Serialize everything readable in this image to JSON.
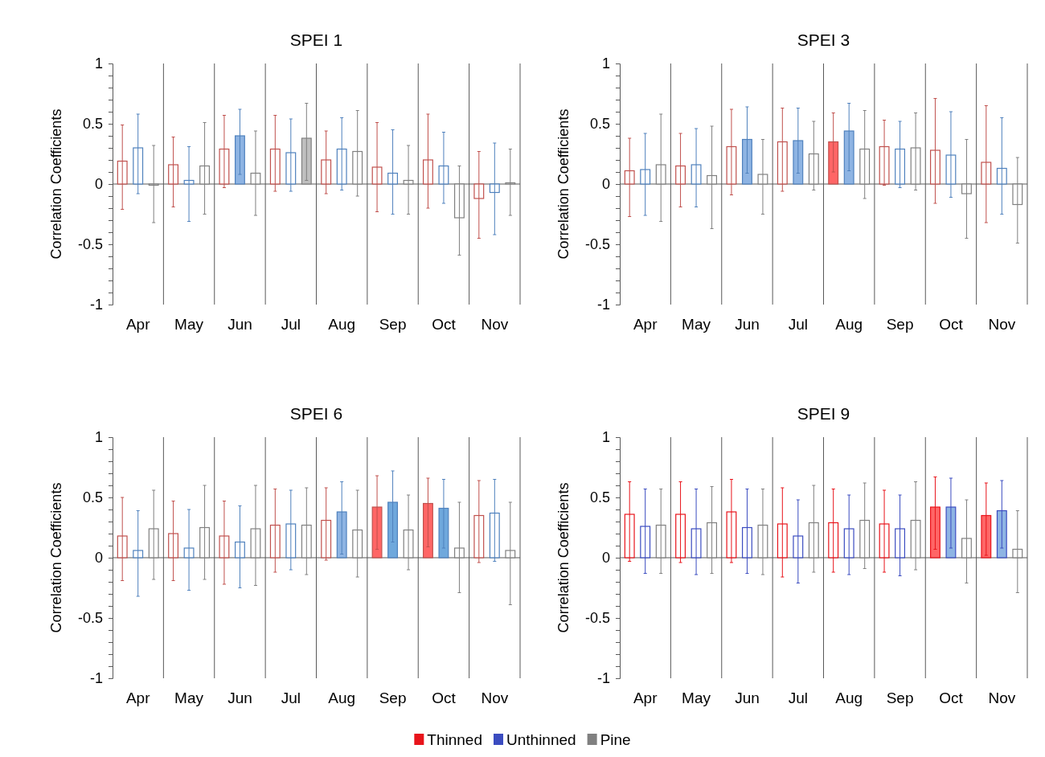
{
  "chart_data": [
    {
      "type": "bar",
      "ref_lines": [
        {
          "axis": "y",
          "value": 0,
          "color": "#595959"
        }
      ],
      "title": "SPEI 1",
      "ylabel": "Correlation Coefficients",
      "categories": [
        "Apr",
        "May",
        "Jun",
        "Jul",
        "Aug",
        "Sep",
        "Oct",
        "Nov"
      ],
      "ylim": [
        -1,
        1
      ],
      "yticks": [
        -1,
        {
          "value": -0.9,
          "label": null
        },
        {
          "value": -0.8,
          "label": null
        },
        {
          "value": -0.7,
          "label": null
        },
        {
          "value": -0.6,
          "label": null
        },
        -0.5,
        {
          "value": -0.4,
          "label": null
        },
        {
          "value": -0.3,
          "label": null
        },
        {
          "value": -0.2,
          "label": null
        },
        {
          "value": -0.1,
          "label": null
        },
        0,
        {
          "value": 0.1,
          "label": null
        },
        {
          "value": 0.2,
          "label": null
        },
        {
          "value": 0.3,
          "label": null
        },
        {
          "value": 0.4,
          "label": null
        },
        0.5,
        {
          "value": 0.6,
          "label": null
        },
        {
          "value": 0.7,
          "label": null
        },
        {
          "value": 0.8,
          "label": null
        },
        {
          "value": 0.9,
          "label": null
        },
        1
      ],
      "grid": "x",
      "series": [
        {
          "color": "#c0504d",
          "values": [
            0.19,
            0.16,
            0.29,
            0.29,
            0.2,
            0.14,
            0.2,
            -0.12
          ],
          "colors": [
            "#ffffff",
            "#ffffff",
            "#ffffff",
            "#ffffff",
            "#ffffff",
            "#ffffff",
            "#ffffff",
            "#ffffff"
          ],
          "errors": [
            [
              -0.21,
              0.49
            ],
            [
              -0.19,
              0.39
            ],
            [
              -0.03,
              0.57
            ],
            [
              -0.06,
              0.57
            ],
            [
              -0.08,
              0.44
            ],
            [
              -0.23,
              0.51
            ],
            [
              -0.2,
              0.58
            ],
            [
              -0.45,
              0.27
            ]
          ]
        },
        {
          "color": "#4f81bd",
          "values": [
            0.3,
            0.03,
            0.4,
            0.26,
            0.29,
            0.09,
            0.15,
            -0.07
          ],
          "colors": [
            "#ffffff",
            "#ffffff",
            "#8eb4e3",
            "#ffffff",
            "#ffffff",
            "#ffffff",
            "#ffffff",
            "#ffffff"
          ],
          "errors": [
            [
              -0.08,
              0.58
            ],
            [
              -0.31,
              0.31
            ],
            [
              0.08,
              0.62
            ],
            [
              -0.06,
              0.54
            ],
            [
              -0.05,
              0.55
            ],
            [
              -0.25,
              0.45
            ],
            [
              -0.16,
              0.43
            ],
            [
              -0.42,
              0.34
            ]
          ]
        },
        {
          "color": "#808080",
          "values": [
            -0.01,
            0.15,
            0.09,
            0.38,
            0.27,
            0.03,
            -0.28,
            0.01
          ],
          "colors": [
            "#ffffff",
            "#ffffff",
            "#ffffff",
            "#bfbfbf",
            "#ffffff",
            "#ffffff",
            "#ffffff",
            "#ffffff"
          ],
          "errors": [
            [
              -0.32,
              0.32
            ],
            [
              -0.25,
              0.51
            ],
            [
              -0.26,
              0.44
            ],
            [
              0.03,
              0.67
            ],
            [
              -0.1,
              0.61
            ],
            [
              -0.25,
              0.32
            ],
            [
              -0.59,
              0.15
            ],
            [
              -0.26,
              0.29
            ]
          ]
        }
      ]
    },
    {
      "type": "bar",
      "ref_lines": [
        {
          "axis": "y",
          "value": 0,
          "color": "#595959"
        }
      ],
      "title": "SPEI 3",
      "ylabel": "Correlation Coefficients",
      "categories": [
        "Apr",
        "May",
        "Jun",
        "Jul",
        "Aug",
        "Sep",
        "Oct",
        "Nov"
      ],
      "ylim": [
        -1,
        1
      ],
      "yticks": [
        -1,
        {
          "value": -0.9,
          "label": null
        },
        {
          "value": -0.8,
          "label": null
        },
        {
          "value": -0.7,
          "label": null
        },
        {
          "value": -0.6,
          "label": null
        },
        -0.5,
        {
          "value": -0.4,
          "label": null
        },
        {
          "value": -0.3,
          "label": null
        },
        {
          "value": -0.2,
          "label": null
        },
        {
          "value": -0.1,
          "label": null
        },
        0,
        {
          "value": 0.1,
          "label": null
        },
        {
          "value": 0.2,
          "label": null
        },
        {
          "value": 0.3,
          "label": null
        },
        {
          "value": 0.4,
          "label": null
        },
        0.5,
        {
          "value": 0.6,
          "label": null
        },
        {
          "value": 0.7,
          "label": null
        },
        {
          "value": 0.8,
          "label": null
        },
        {
          "value": 0.9,
          "label": null
        },
        1
      ],
      "grid": "x",
      "series": [
        {
          "color": "#c0504d",
          "values": [
            0.11,
            0.15,
            0.31,
            0.35,
            0.35,
            0.31,
            0.28,
            0.18
          ],
          "colors": [
            "#ffffff",
            "#ffffff",
            "#ffffff",
            "#ffffff",
            "#ff6666",
            "#ffffff",
            "#ffffff",
            "#ffffff"
          ],
          "errors": [
            [
              -0.27,
              0.38
            ],
            [
              -0.19,
              0.42
            ],
            [
              -0.09,
              0.62
            ],
            [
              -0.06,
              0.63
            ],
            [
              0.1,
              0.59
            ],
            [
              -0.01,
              0.53
            ],
            [
              -0.16,
              0.71
            ],
            [
              -0.32,
              0.65
            ]
          ]
        },
        {
          "color": "#4f81bd",
          "values": [
            0.12,
            0.16,
            0.37,
            0.36,
            0.44,
            0.29,
            0.24,
            0.13
          ],
          "colors": [
            "#ffffff",
            "#ffffff",
            "#8eb4e3",
            "#8eb4e3",
            "#8eb4e3",
            "#ffffff",
            "#ffffff",
            "#ffffff"
          ],
          "errors": [
            [
              -0.26,
              0.42
            ],
            [
              -0.19,
              0.46
            ],
            [
              0.09,
              0.64
            ],
            [
              0.09,
              0.63
            ],
            [
              0.11,
              0.67
            ],
            [
              -0.03,
              0.52
            ],
            [
              -0.11,
              0.6
            ],
            [
              -0.25,
              0.55
            ]
          ]
        },
        {
          "color": "#808080",
          "values": [
            0.16,
            0.07,
            0.08,
            0.25,
            0.29,
            0.3,
            -0.08,
            -0.17
          ],
          "colors": [
            "#ffffff",
            "#ffffff",
            "#ffffff",
            "#ffffff",
            "#ffffff",
            "#ffffff",
            "#ffffff",
            "#ffffff"
          ],
          "errors": [
            [
              -0.31,
              0.58
            ],
            [
              -0.37,
              0.48
            ],
            [
              -0.25,
              0.37
            ],
            [
              -0.05,
              0.52
            ],
            [
              -0.12,
              0.61
            ],
            [
              -0.05,
              0.59
            ],
            [
              -0.45,
              0.37
            ],
            [
              -0.49,
              0.22
            ]
          ]
        }
      ]
    },
    {
      "type": "bar",
      "ref_lines": [
        {
          "axis": "y",
          "value": 0,
          "color": "#595959"
        }
      ],
      "title": "SPEI 6",
      "ylabel": "Correlation Coefficients",
      "categories": [
        "Apr",
        "May",
        "Jun",
        "Jul",
        "Aug",
        "Sep",
        "Oct",
        "Nov"
      ],
      "ylim": [
        -1,
        1
      ],
      "yticks": [
        -1,
        {
          "value": -0.9,
          "label": null
        },
        {
          "value": -0.8,
          "label": null
        },
        {
          "value": -0.7,
          "label": null
        },
        {
          "value": -0.6,
          "label": null
        },
        -0.5,
        {
          "value": -0.4,
          "label": null
        },
        {
          "value": -0.3,
          "label": null
        },
        {
          "value": -0.2,
          "label": null
        },
        {
          "value": -0.1,
          "label": null
        },
        0,
        {
          "value": 0.1,
          "label": null
        },
        {
          "value": 0.2,
          "label": null
        },
        {
          "value": 0.3,
          "label": null
        },
        {
          "value": 0.4,
          "label": null
        },
        0.5,
        {
          "value": 0.6,
          "label": null
        },
        {
          "value": 0.7,
          "label": null
        },
        {
          "value": 0.8,
          "label": null
        },
        {
          "value": 0.9,
          "label": null
        },
        1
      ],
      "grid": "x",
      "series": [
        {
          "color": "#c0504d",
          "values": [
            0.18,
            0.2,
            0.18,
            0.27,
            0.31,
            0.42,
            0.45,
            0.35
          ],
          "colors": [
            "#ffffff",
            "#ffffff",
            "#ffffff",
            "#ffffff",
            "#ffffff",
            "#ff6666",
            "#ff6666",
            "#ffffff"
          ],
          "errors": [
            [
              -0.19,
              0.5
            ],
            [
              -0.19,
              0.47
            ],
            [
              -0.22,
              0.47
            ],
            [
              -0.12,
              0.57
            ],
            [
              -0.02,
              0.58
            ],
            [
              0.07,
              0.68
            ],
            [
              0.09,
              0.66
            ],
            [
              -0.04,
              0.64
            ]
          ]
        },
        {
          "color": "#4f81bd",
          "values": [
            0.06,
            0.08,
            0.13,
            0.28,
            0.38,
            0.46,
            0.41,
            0.37
          ],
          "colors": [
            "#ffffff",
            "#ffffff",
            "#ffffff",
            "#ffffff",
            "#8eb4e3",
            "#6fa8dc",
            "#6fa8dc",
            "#ffffff"
          ],
          "errors": [
            [
              -0.32,
              0.39
            ],
            [
              -0.27,
              0.4
            ],
            [
              -0.25,
              0.43
            ],
            [
              -0.1,
              0.56
            ],
            [
              0.03,
              0.63
            ],
            [
              0.13,
              0.72
            ],
            [
              0.08,
              0.65
            ],
            [
              -0.03,
              0.65
            ]
          ]
        },
        {
          "color": "#808080",
          "values": [
            0.24,
            0.25,
            0.24,
            0.27,
            0.23,
            0.23,
            0.08,
            0.06
          ],
          "colors": [
            "#ffffff",
            "#ffffff",
            "#ffffff",
            "#ffffff",
            "#ffffff",
            "#ffffff",
            "#ffffff",
            "#ffffff"
          ],
          "errors": [
            [
              -0.18,
              0.56
            ],
            [
              -0.18,
              0.6
            ],
            [
              -0.23,
              0.6
            ],
            [
              -0.14,
              0.58
            ],
            [
              -0.16,
              0.56
            ],
            [
              -0.1,
              0.52
            ],
            [
              -0.29,
              0.46
            ],
            [
              -0.39,
              0.46
            ]
          ]
        }
      ]
    },
    {
      "type": "bar",
      "ref_lines": [
        {
          "axis": "y",
          "value": 0,
          "color": "#595959"
        }
      ],
      "title": "SPEI 9",
      "ylabel": "Correlation Coefficients",
      "categories": [
        "Apr",
        "May",
        "Jun",
        "Jul",
        "Aug",
        "Sep",
        "Oct",
        "Nov"
      ],
      "ylim": [
        -1,
        1
      ],
      "yticks": [
        -1,
        {
          "value": -0.9,
          "label": null
        },
        {
          "value": -0.8,
          "label": null
        },
        {
          "value": -0.7,
          "label": null
        },
        {
          "value": -0.6,
          "label": null
        },
        -0.5,
        {
          "value": -0.4,
          "label": null
        },
        {
          "value": -0.3,
          "label": null
        },
        {
          "value": -0.2,
          "label": null
        },
        {
          "value": -0.1,
          "label": null
        },
        0,
        {
          "value": 0.1,
          "label": null
        },
        {
          "value": 0.2,
          "label": null
        },
        {
          "value": 0.3,
          "label": null
        },
        {
          "value": 0.4,
          "label": null
        },
        0.5,
        {
          "value": 0.6,
          "label": null
        },
        {
          "value": 0.7,
          "label": null
        },
        {
          "value": 0.8,
          "label": null
        },
        {
          "value": 0.9,
          "label": null
        },
        1
      ],
      "grid": "x",
      "legend": "bottom",
      "series": [
        {
          "name": "Thinned",
          "color": "#e8141b",
          "values": [
            0.36,
            0.36,
            0.38,
            0.28,
            0.29,
            0.28,
            0.42,
            0.35
          ],
          "colors": [
            "#ffffff",
            "#ffffff",
            "#ffffff",
            "#ffffff",
            "#ffffff",
            "#ffffff",
            "#ff6666",
            "#ff6666"
          ],
          "errors": [
            [
              -0.03,
              0.63
            ],
            [
              -0.04,
              0.63
            ],
            [
              -0.04,
              0.65
            ],
            [
              -0.16,
              0.58
            ],
            [
              -0.12,
              0.57
            ],
            [
              -0.12,
              0.56
            ],
            [
              0.07,
              0.67
            ],
            [
              0.02,
              0.62
            ]
          ]
        },
        {
          "name": "Unthinned",
          "color": "#3b4cc0",
          "values": [
            0.26,
            0.24,
            0.25,
            0.18,
            0.24,
            0.24,
            0.42,
            0.39
          ],
          "colors": [
            "#ffffff",
            "#ffffff",
            "#ffffff",
            "#ffffff",
            "#ffffff",
            "#ffffff",
            "#8eb4e3",
            "#8eb4e3"
          ],
          "errors": [
            [
              -0.13,
              0.57
            ],
            [
              -0.14,
              0.57
            ],
            [
              -0.13,
              0.57
            ],
            [
              -0.21,
              0.48
            ],
            [
              -0.14,
              0.52
            ],
            [
              -0.15,
              0.52
            ],
            [
              0.08,
              0.66
            ],
            [
              0.08,
              0.64
            ]
          ]
        },
        {
          "name": "Pine",
          "color": "#808080",
          "values": [
            0.27,
            0.29,
            0.27,
            0.29,
            0.31,
            0.31,
            0.16,
            0.07
          ],
          "colors": [
            "#ffffff",
            "#ffffff",
            "#ffffff",
            "#ffffff",
            "#ffffff",
            "#ffffff",
            "#ffffff",
            "#ffffff"
          ],
          "errors": [
            [
              -0.13,
              0.57
            ],
            [
              -0.13,
              0.59
            ],
            [
              -0.14,
              0.57
            ],
            [
              -0.12,
              0.6
            ],
            [
              -0.09,
              0.62
            ],
            [
              -0.1,
              0.63
            ],
            [
              -0.21,
              0.48
            ],
            [
              -0.29,
              0.39
            ]
          ]
        }
      ]
    }
  ]
}
